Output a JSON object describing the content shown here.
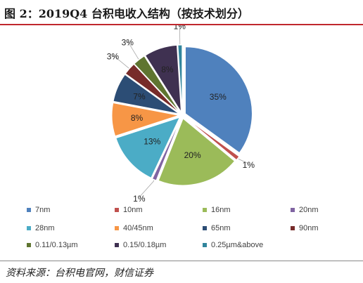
{
  "figure": {
    "caption": "图 2：2019Q4 台积电收入结构（按技术划分）",
    "source": "资料来源：台积电官网，财信证券"
  },
  "chart_data": {
    "type": "pie",
    "title": "",
    "start_angle_deg": 90,
    "direction": "clockwise",
    "slices": [
      {
        "name": "7nm",
        "value": 35,
        "label": "35%",
        "color": "#4f81bd"
      },
      {
        "name": "10nm",
        "value": 1,
        "label": "1%",
        "color": "#c0504d"
      },
      {
        "name": "16nm",
        "value": 20,
        "label": "20%",
        "color": "#9bbb59"
      },
      {
        "name": "20nm",
        "value": 1,
        "label": "1%",
        "color": "#8064a2"
      },
      {
        "name": "28nm",
        "value": 13,
        "label": "13%",
        "color": "#4bacc6"
      },
      {
        "name": "40/45nm",
        "value": 8,
        "label": "8%",
        "color": "#f79646"
      },
      {
        "name": "65nm",
        "value": 7,
        "label": "7%",
        "color": "#2c4d75"
      },
      {
        "name": "90nm",
        "value": 3,
        "label": "3%",
        "color": "#772c2a"
      },
      {
        "name": "0.11/0.13µm",
        "value": 3,
        "label": "3%",
        "color": "#5f7530"
      },
      {
        "name": "0.15/0.18µm",
        "value": 8,
        "label": "8%",
        "color": "#3f3151"
      },
      {
        "name": "0.25µm&above",
        "value": 1,
        "label": "1%",
        "color": "#31859c"
      }
    ],
    "legend_position": "bottom"
  }
}
